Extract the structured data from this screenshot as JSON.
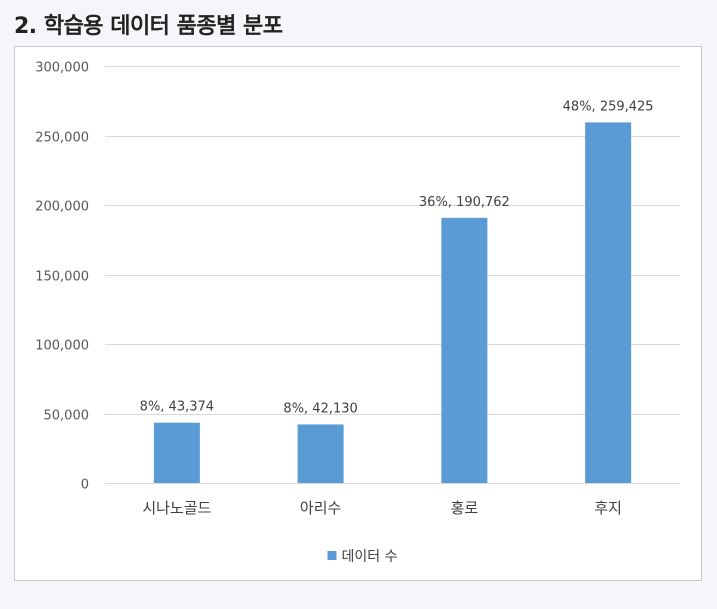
{
  "page": {
    "title": "2. 학습용 데이터 품종별 분포"
  },
  "chart_data": {
    "type": "bar",
    "title": "",
    "xlabel": "",
    "ylabel": "",
    "categories": [
      "시나노골드",
      "아리수",
      "홍로",
      "후지"
    ],
    "series": [
      {
        "name": "데이터 수",
        "values": [
          43374,
          42130,
          190762,
          259425
        ],
        "data_labels": [
          "8%, 43,374",
          "8%, 42,130",
          "36%, 190,762",
          "48%, 259,425"
        ],
        "color": "#5b9bd5"
      }
    ],
    "ylim": [
      0,
      300000
    ],
    "yticks": [
      0,
      50000,
      100000,
      150000,
      200000,
      250000,
      300000
    ],
    "ytick_labels": [
      "0",
      "50,000",
      "100,000",
      "150,000",
      "200,000",
      "250,000",
      "300,000"
    ],
    "grid": true,
    "legend": "bottom",
    "gridline_color": "#d9d9d9"
  }
}
